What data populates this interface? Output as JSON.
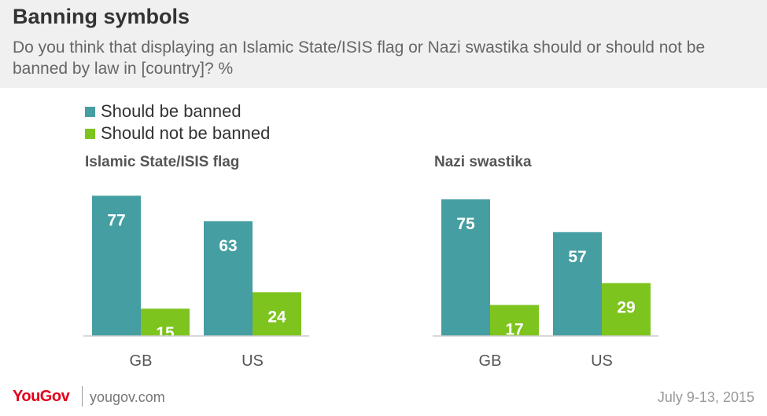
{
  "title": "Banning symbols",
  "subtitle": "Do you think that displaying an Islamic State/ISIS flag or Nazi swastika should or should not be banned by law in [country]? %",
  "colors": {
    "banned": "#459ea1",
    "not_banned": "#7dc41f",
    "axis": "#cccccc",
    "tick_text": "#555555",
    "value_text": "#ffffff"
  },
  "chart_data": [
    {
      "type": "bar",
      "title": "Islamic State/ISIS flag",
      "categories": [
        "GB",
        "US"
      ],
      "series": [
        {
          "name": "Should be banned",
          "values": [
            77,
            63
          ]
        },
        {
          "name": "Should not be banned",
          "values": [
            15,
            24
          ]
        }
      ],
      "ylim": [
        0,
        80
      ],
      "legend": "top-left",
      "grid": false
    },
    {
      "type": "bar",
      "title": "Nazi swastika",
      "categories": [
        "GB",
        "US"
      ],
      "series": [
        {
          "name": "Should be banned",
          "values": [
            75,
            57
          ]
        },
        {
          "name": "Should not be banned",
          "values": [
            17,
            29
          ]
        }
      ],
      "ylim": [
        0,
        80
      ],
      "legend": "top-left",
      "grid": false
    }
  ],
  "footer": {
    "logo": "YouGov",
    "site": "yougov.com",
    "date": "July 9-13, 2015"
  }
}
